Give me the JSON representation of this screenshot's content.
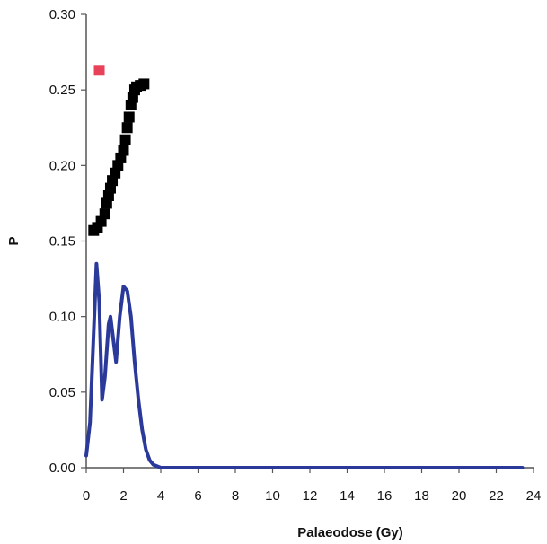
{
  "chart_data": {
    "type": "scatter",
    "title": "",
    "xlabel": "Palaeodose (Gy)",
    "ylabel": "P",
    "xlim": [
      0,
      24
    ],
    "ylim": [
      0,
      0.3
    ],
    "x_ticks": [
      0,
      2,
      4,
      6,
      8,
      10,
      12,
      14,
      16,
      18,
      20,
      22,
      24
    ],
    "y_ticks": [
      0.0,
      0.05,
      0.1,
      0.15,
      0.2,
      0.25,
      0.3
    ],
    "x_tick_labels": [
      "0",
      "2",
      "4",
      "6",
      "8",
      "10",
      "12",
      "14",
      "16",
      "18",
      "20",
      "22",
      "24"
    ],
    "y_tick_labels": [
      "0.00",
      "0.05",
      "0.10",
      "0.15",
      "0.20",
      "0.25",
      "0.30"
    ],
    "grid": false,
    "legend": "none",
    "series": [
      {
        "kind": "line",
        "color": "#2b3a9a",
        "points": [
          [
            0.0,
            0.008
          ],
          [
            0.2,
            0.03
          ],
          [
            0.4,
            0.09
          ],
          [
            0.55,
            0.135
          ],
          [
            0.7,
            0.11
          ],
          [
            0.85,
            0.045
          ],
          [
            1.0,
            0.06
          ],
          [
            1.2,
            0.095
          ],
          [
            1.3,
            0.1
          ],
          [
            1.45,
            0.085
          ],
          [
            1.6,
            0.07
          ],
          [
            1.8,
            0.1
          ],
          [
            2.0,
            0.12
          ],
          [
            2.2,
            0.117
          ],
          [
            2.4,
            0.1
          ],
          [
            2.6,
            0.07
          ],
          [
            2.8,
            0.045
          ],
          [
            3.0,
            0.025
          ],
          [
            3.2,
            0.012
          ],
          [
            3.4,
            0.005
          ],
          [
            3.6,
            0.002
          ],
          [
            4.0,
            0.0
          ],
          [
            6.0,
            0.0
          ],
          [
            10.0,
            0.0
          ],
          [
            16.0,
            0.0
          ],
          [
            20.0,
            0.0
          ],
          [
            23.4,
            0.0
          ]
        ]
      },
      {
        "kind": "markers",
        "color": "#000000",
        "points": [
          [
            0.4,
            0.157
          ],
          [
            0.6,
            0.159
          ],
          [
            0.8,
            0.163
          ],
          [
            1.0,
            0.168
          ],
          [
            1.1,
            0.175
          ],
          [
            1.2,
            0.18
          ],
          [
            1.3,
            0.185
          ],
          [
            1.4,
            0.19
          ],
          [
            1.55,
            0.195
          ],
          [
            1.7,
            0.2
          ],
          [
            1.85,
            0.205
          ],
          [
            2.0,
            0.21
          ],
          [
            2.1,
            0.217
          ],
          [
            2.2,
            0.225
          ],
          [
            2.3,
            0.232
          ],
          [
            2.4,
            0.24
          ],
          [
            2.5,
            0.245
          ],
          [
            2.6,
            0.25
          ],
          [
            2.7,
            0.252
          ],
          [
            2.9,
            0.253
          ],
          [
            3.1,
            0.254
          ]
        ]
      },
      {
        "kind": "markers",
        "color": "#e8425a",
        "points": [
          [
            0.7,
            0.263
          ]
        ]
      }
    ]
  }
}
